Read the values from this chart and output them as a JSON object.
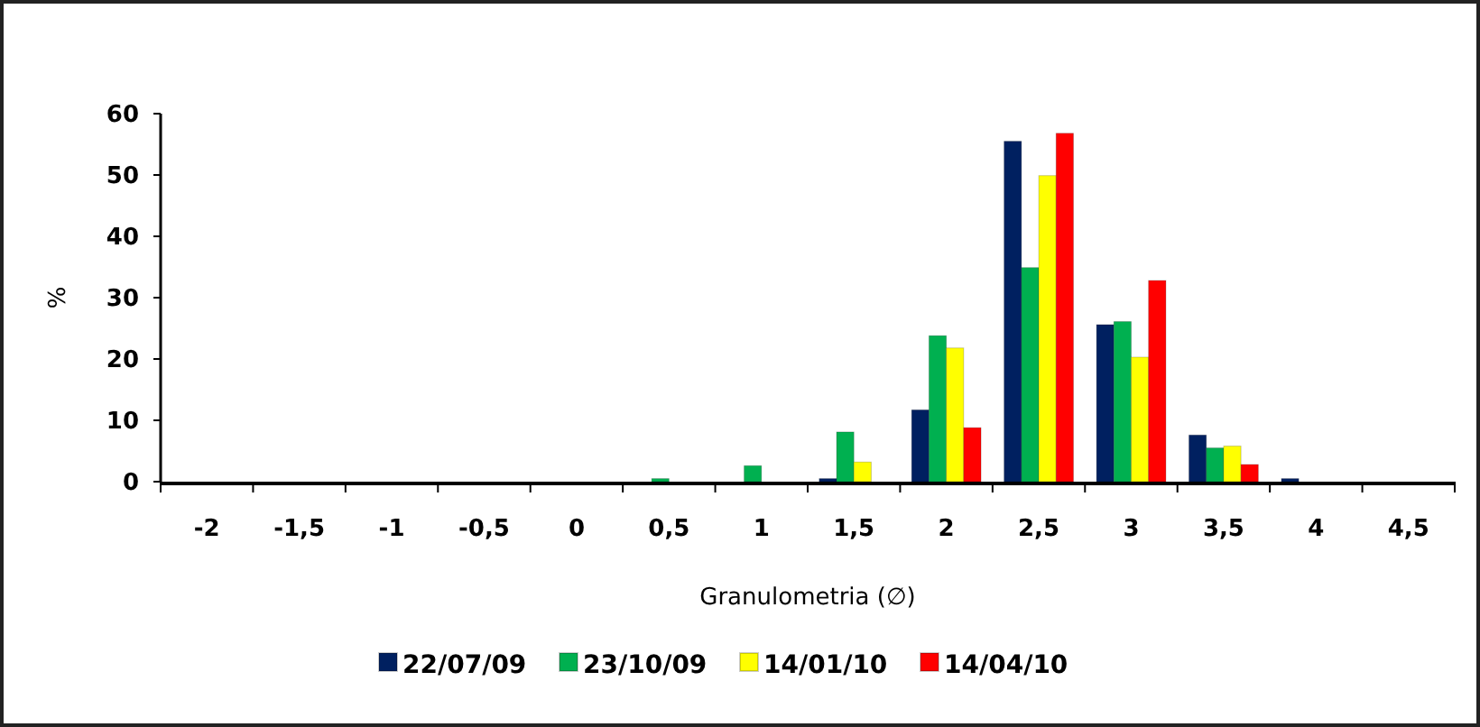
{
  "chart_data": {
    "type": "bar",
    "xlabel": "Granulometria (∅)",
    "ylabel": "%",
    "categories": [
      "-2",
      "-1,5",
      "-1",
      "-0,5",
      "0",
      "0,5",
      "1",
      "1,5",
      "2",
      "2,5",
      "3",
      "3,5",
      "4",
      "4,5"
    ],
    "series": [
      {
        "name": "22/07/09",
        "color": "#002060",
        "values": [
          0,
          0,
          0,
          0,
          0,
          0,
          0,
          0.5,
          11.7,
          55.5,
          25.6,
          7.6,
          0.5,
          0
        ]
      },
      {
        "name": "23/10/09",
        "color": "#00b050",
        "values": [
          0,
          0,
          0,
          0,
          0,
          0.5,
          2.6,
          8.1,
          23.8,
          34.9,
          26.1,
          5.5,
          0,
          0
        ]
      },
      {
        "name": "14/01/10",
        "color": "#ffff00",
        "values": [
          0,
          0,
          0,
          0,
          0,
          0,
          0,
          3.2,
          21.8,
          49.9,
          20.3,
          5.8,
          0,
          0
        ]
      },
      {
        "name": "14/04/10",
        "color": "#ff0000",
        "values": [
          0,
          0,
          0,
          0,
          0,
          0,
          0,
          0,
          8.8,
          56.8,
          32.8,
          2.8,
          0,
          0
        ]
      }
    ],
    "ylim": [
      0,
      60
    ],
    "yticks": [
      0,
      10,
      20,
      30,
      40,
      50,
      60
    ],
    "legend": "bottom"
  }
}
